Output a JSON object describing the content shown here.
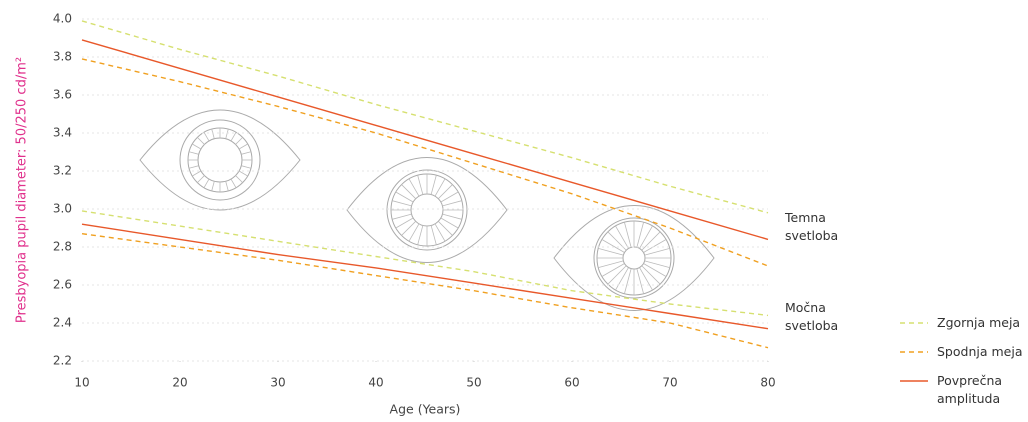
{
  "chart_data": {
    "type": "line",
    "ylabel": "Presbyopia pupil diameter: 50/250 cd/m²",
    "xlabel": "Age (Years)",
    "x": [
      10,
      20,
      30,
      40,
      50,
      60,
      70,
      80
    ],
    "xlim": [
      10,
      80
    ],
    "xticks": [
      10,
      20,
      30,
      40,
      50,
      60,
      70,
      80
    ],
    "ylim": [
      2.2,
      4.0
    ],
    "yticks": [
      2.2,
      2.4,
      2.6,
      2.8,
      {
        "value": 3,
        "label": "3.0"
      },
      3.2,
      3.4,
      3.6,
      3.8,
      {
        "value": 4,
        "label": "4.0"
      }
    ],
    "grid": true,
    "legend": [
      {
        "name": "Zgornja meja",
        "color": "#d6e070",
        "dash": true
      },
      {
        "name": "Spodnja meja",
        "color": "#f0a020",
        "dash": true
      },
      {
        "name": "Povprečna amplituda",
        "color": "#e8582a",
        "dash": false
      }
    ],
    "groups": [
      {
        "label": "Temna svetloba",
        "upper": [
          3.99,
          3.84,
          3.7,
          3.55,
          3.41,
          3.27,
          3.12,
          2.98
        ],
        "lower": [
          3.79,
          3.67,
          3.54,
          3.4,
          3.24,
          3.08,
          2.9,
          2.7
        ],
        "mean": [
          3.89,
          3.74,
          3.59,
          3.44,
          3.29,
          3.14,
          2.99,
          2.84
        ]
      },
      {
        "label": "Močna svetloba",
        "upper": [
          2.99,
          2.91,
          2.83,
          2.75,
          2.67,
          2.57,
          2.5,
          2.44
        ],
        "lower": [
          2.87,
          2.8,
          2.73,
          2.65,
          2.57,
          2.48,
          2.4,
          2.27
        ],
        "mean": [
          2.92,
          2.84,
          2.76,
          2.69,
          2.61,
          2.53,
          2.45,
          2.37
        ]
      }
    ]
  }
}
